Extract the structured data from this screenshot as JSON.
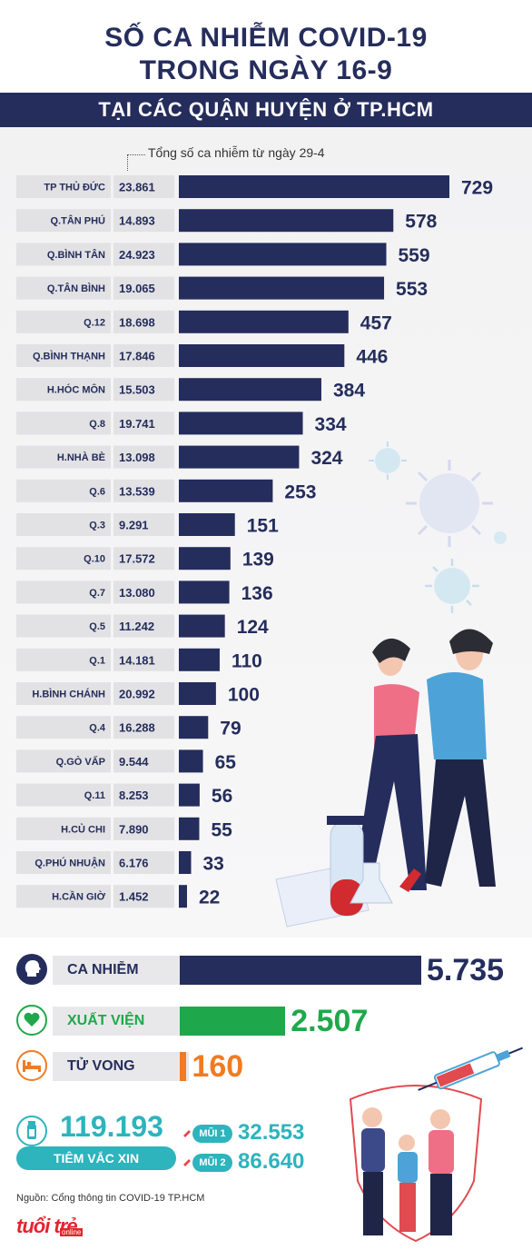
{
  "header": {
    "title_line1": "SỐ CA NHIỄM COVID-19",
    "title_line2": "TRONG NGÀY 16-9",
    "subtitle": "TẠI CÁC QUẬN HUYỆN Ở TP.HCM"
  },
  "chart_note": "Tổng số ca nhiễm từ ngày 29-4",
  "colors": {
    "navy": "#252d5c",
    "green": "#1fa84b",
    "orange": "#f07b22",
    "teal": "#2db4bd",
    "label_bg": "#e2e2e4"
  },
  "chart_data": {
    "type": "bar",
    "orientation": "horizontal",
    "categories": [
      "TP THỦ ĐỨC",
      "Q.TÂN PHÚ",
      "Q.BÌNH TÂN",
      "Q.TÂN BÌNH",
      "Q.12",
      "Q.BÌNH THẠNH",
      "H.HÓC MÔN",
      "Q.8",
      "H.NHÀ BÈ",
      "Q.6",
      "Q.3",
      "Q.10",
      "Q.7",
      "Q.5",
      "Q.1",
      "H.BÌNH CHÁNH",
      "Q.4",
      "Q.GÒ VẤP",
      "Q.11",
      "H.CỦ CHI",
      "Q.PHÚ NHUẬN",
      "H.CẦN GIỜ"
    ],
    "totals_label": [
      "23.861",
      "14.893",
      "24.923",
      "19.065",
      "18.698",
      "17.846",
      "15.503",
      "19.741",
      "13.098",
      "13.539",
      "9.291",
      "17.572",
      "13.080",
      "11.242",
      "14.181",
      "20.992",
      "16.288",
      "9.544",
      "8.253",
      "7.890",
      "6.176",
      "1.452"
    ],
    "values": [
      729,
      578,
      559,
      553,
      457,
      446,
      384,
      334,
      324,
      253,
      151,
      139,
      136,
      124,
      110,
      100,
      79,
      65,
      56,
      55,
      33,
      22
    ]
  },
  "summary": {
    "cases": {
      "label": "CA NHIỄM",
      "value": "5.735",
      "number": 5735,
      "icon": "head-icon"
    },
    "recovered": {
      "label": "XUẤT VIỆN",
      "value": "2.507",
      "number": 2507,
      "icon": "heart-icon"
    },
    "deaths": {
      "label": "TỬ VONG",
      "value": "160",
      "number": 160,
      "icon": "bed-icon"
    }
  },
  "vaccine": {
    "total": "119.193",
    "label": "TIÊM VẮC XIN",
    "dose1_label": "MŨI 1",
    "dose1_value": "32.553",
    "dose2_label": "MŨI 2",
    "dose2_value": "86.640"
  },
  "source": "Nguồn: Cổng thông tin COVID-19 TP.HCM",
  "logo": {
    "main": "tuổi trẻ",
    "sub": "online"
  }
}
